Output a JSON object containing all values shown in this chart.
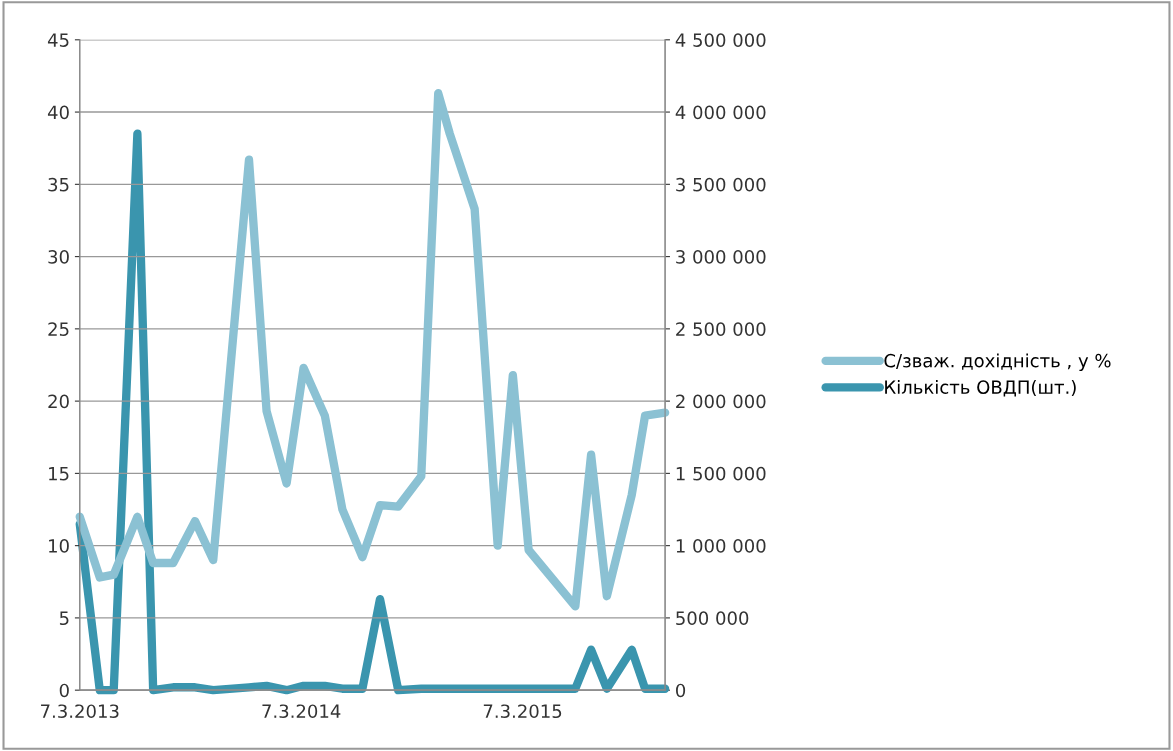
{
  "chart_data": {
    "type": "line",
    "x": [
      "2013-03-07",
      "2013-04-09",
      "2013-05-02",
      "2013-06-10",
      "2013-07-06",
      "2013-08-08",
      "2013-09-13",
      "2013-10-13",
      "2013-12-11",
      "2014-01-09",
      "2014-02-11",
      "2014-03-11",
      "2014-04-15",
      "2014-05-14",
      "2014-06-16",
      "2014-07-15",
      "2014-08-14",
      "2014-09-21",
      "2014-10-19",
      "2014-11-07",
      "2014-12-18",
      "2015-01-25",
      "2015-02-19",
      "2015-03-17",
      "2015-06-02",
      "2015-06-28",
      "2015-07-24",
      "2015-09-03",
      "2015-09-25",
      "2015-10-28"
    ],
    "series": [
      {
        "name": "С/зваж. дохідність , у %",
        "color": "#8bc1d3",
        "values": [
          12.0,
          7.8,
          8.0,
          12.0,
          8.8,
          8.8,
          11.7,
          9.0,
          36.7,
          19.3,
          14.3,
          22.3,
          19.0,
          12.5,
          9.2,
          12.8,
          12.7,
          14.8,
          41.3,
          38.5,
          33.3,
          10.0,
          21.8,
          9.7,
          5.8,
          16.3,
          6.5,
          13.5,
          19.0,
          19.2
        ]
      },
      {
        "name": "Кількість ОВДП(шт.)",
        "color": "#3a95ae",
        "axis": "y2",
        "values": [
          1150000,
          0,
          0,
          3850000,
          0,
          20000,
          20000,
          0,
          20000,
          30000,
          0,
          30000,
          30000,
          10000,
          10000,
          630000,
          0,
          10000,
          10000,
          10000,
          10000,
          10000,
          10000,
          10000,
          10000,
          280000,
          10000,
          280000,
          10000,
          10000
        ]
      }
    ],
    "xlim": [
      "2013-03-07",
      "2015-10-28"
    ],
    "xticks": [
      {
        "value": "2013-03-07",
        "label": "7.3.2013"
      },
      {
        "value": "2014-03-07",
        "label": "7.3.2014"
      },
      {
        "value": "2015-03-07",
        "label": "7.3.2015"
      }
    ],
    "ylim": [
      0,
      45
    ],
    "yticks": [
      0,
      5,
      10,
      15,
      20,
      25,
      30,
      35,
      40,
      45
    ],
    "y2lim": [
      0,
      4500000
    ],
    "y2ticks": [
      0,
      {
        "value": 500000,
        "label": "500 000"
      },
      {
        "value": 1000000,
        "label": "1 000 000"
      },
      {
        "value": 1500000,
        "label": "1 500 000"
      },
      {
        "value": 2000000,
        "label": "2 000 000"
      },
      {
        "value": 2500000,
        "label": "2 500 000"
      },
      {
        "value": 3000000,
        "label": "3 000 000"
      },
      {
        "value": 3500000,
        "label": "3 500 000"
      },
      {
        "value": 4000000,
        "label": "4 000 000"
      },
      {
        "value": 4500000,
        "label": "4 500 000"
      }
    ],
    "grid": "y",
    "legend": "right",
    "marker": "none",
    "line_style": "solid"
  }
}
